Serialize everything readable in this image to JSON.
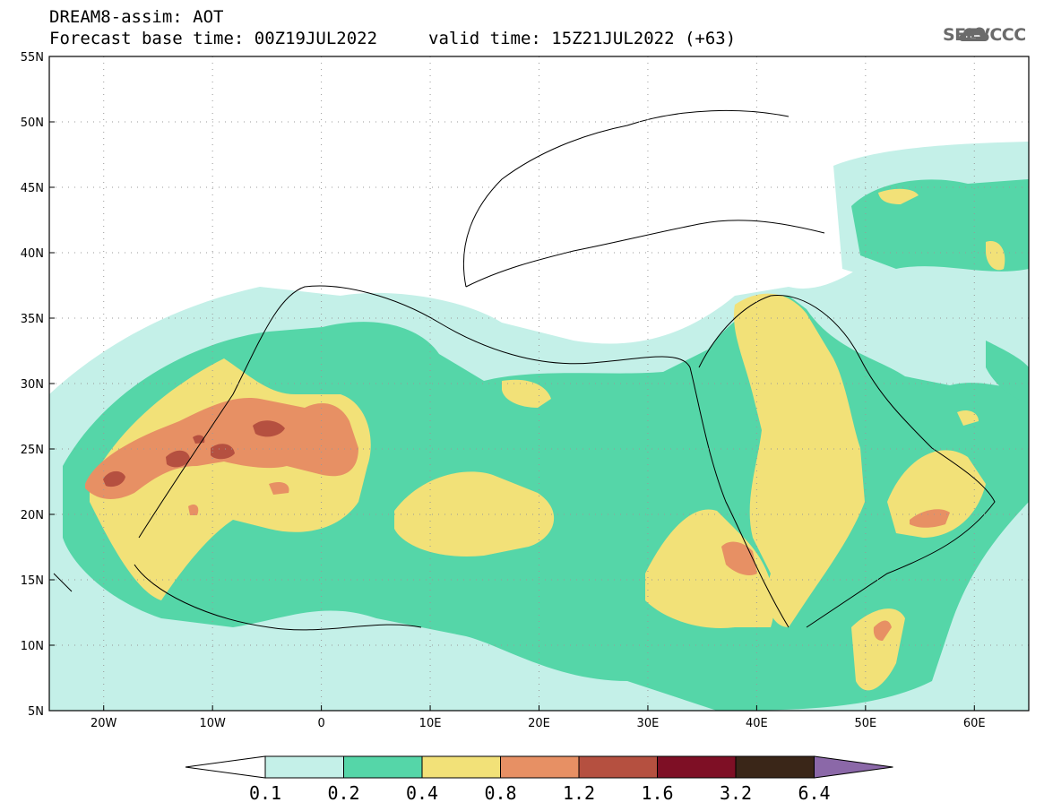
{
  "header": {
    "title": "DREAM8-assim: AOT",
    "base_time": "Forecast base time: 00Z19JUL2022",
    "valid_time": "valid time: 15Z21JUL2022 (+63)",
    "logo_text": "SEEVCCC"
  },
  "map": {
    "lon_range": [
      -25,
      65
    ],
    "lat_range": [
      5,
      55
    ],
    "lat_ticks": [
      {
        "value": 55,
        "label": "55N"
      },
      {
        "value": 50,
        "label": "50N"
      },
      {
        "value": 45,
        "label": "45N"
      },
      {
        "value": 40,
        "label": "40N"
      },
      {
        "value": 35,
        "label": "35N"
      },
      {
        "value": 30,
        "label": "30N"
      },
      {
        "value": 25,
        "label": "25N"
      },
      {
        "value": 20,
        "label": "20N"
      },
      {
        "value": 15,
        "label": "15N"
      },
      {
        "value": 10,
        "label": "10N"
      },
      {
        "value": 5,
        "label": "5N"
      }
    ],
    "lon_ticks": [
      {
        "value": -20,
        "label": "20W"
      },
      {
        "value": -10,
        "label": "10W"
      },
      {
        "value": 0,
        "label": "0"
      },
      {
        "value": 10,
        "label": "10E"
      },
      {
        "value": 20,
        "label": "20E"
      },
      {
        "value": 30,
        "label": "30E"
      },
      {
        "value": 40,
        "label": "40E"
      },
      {
        "value": 50,
        "label": "50E"
      },
      {
        "value": 60,
        "label": "60E"
      }
    ]
  },
  "colorbar": {
    "under_color": "#ffffff",
    "over_color": "#8b68a8",
    "bins": [
      {
        "color": "#c4f0e8"
      },
      {
        "color": "#55d6a8"
      },
      {
        "color": "#f2e178"
      },
      {
        "color": "#e79064"
      },
      {
        "color": "#b55040"
      },
      {
        "color": "#7e0f25"
      },
      {
        "color": "#3a2618"
      }
    ],
    "labels": [
      "0.1",
      "0.2",
      "0.4",
      "0.8",
      "1.2",
      "1.6",
      "3.2",
      "6.4"
    ]
  }
}
